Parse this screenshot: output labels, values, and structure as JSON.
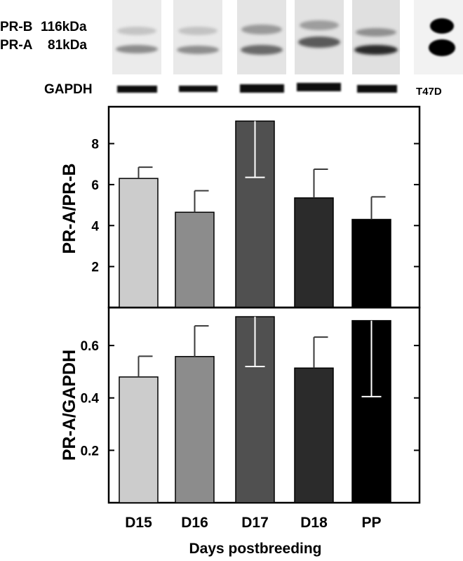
{
  "blot": {
    "band_labels": {
      "pr_b": "PR-B",
      "pr_b_size": "116kDa",
      "pr_a": "PR-A",
      "pr_a_size": "81kDa"
    },
    "loading_control_label": "GAPDH",
    "control_lane_label": "T47D"
  },
  "chart_data": [
    {
      "type": "bar",
      "categories": [
        "D15",
        "D16",
        "D17",
        "D18",
        "PP"
      ],
      "values": [
        6.3,
        4.65,
        9.1,
        5.35,
        4.3
      ],
      "error_bars": [
        0.55,
        1.05,
        2.75,
        1.4,
        1.1
      ],
      "ylabel": "PR-A/PR-B",
      "ylim": [
        0,
        9.8
      ],
      "yticks": [
        2,
        4,
        6,
        8
      ],
      "bar_colors": [
        "#cccccc",
        "#8c8c8c",
        "#505050",
        "#2b2b2b",
        "#000000"
      ]
    },
    {
      "type": "bar",
      "categories": [
        "D15",
        "D16",
        "D17",
        "D18",
        "PP"
      ],
      "values": [
        0.48,
        0.558,
        0.71,
        0.514,
        0.695
      ],
      "error_bars": [
        0.079,
        0.117,
        0.19,
        0.118,
        0.29
      ],
      "ylabel": "PR-A/GAPDH",
      "xlabel": "Days postbreeding",
      "ylim": [
        0,
        0.745
      ],
      "yticks": [
        0.2,
        0.4,
        0.6
      ],
      "bar_colors": [
        "#cccccc",
        "#8c8c8c",
        "#505050",
        "#2b2b2b",
        "#000000"
      ]
    }
  ]
}
